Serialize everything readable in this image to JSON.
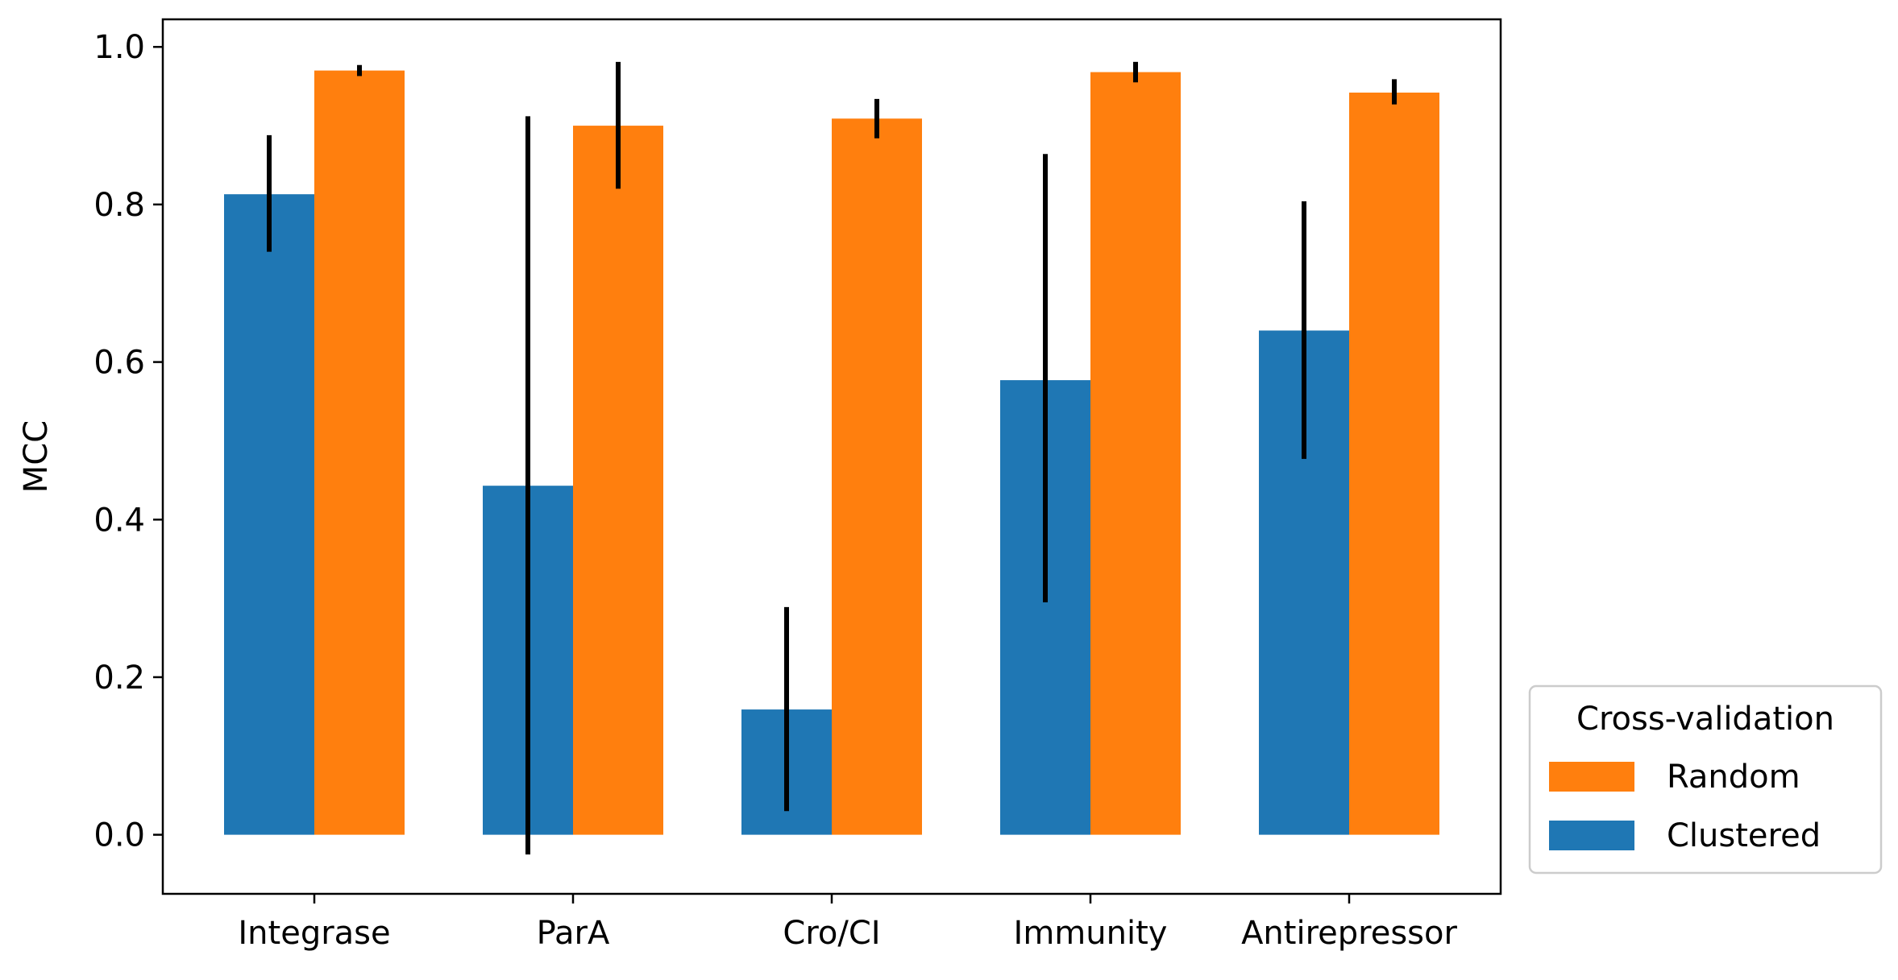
{
  "chart_data": {
    "type": "bar",
    "title": "",
    "xlabel": "",
    "ylabel": "MCC",
    "ylim": [
      -0.075,
      1.035
    ],
    "yticks": [
      "0.0",
      "0.2",
      "0.4",
      "0.6",
      "0.8",
      "1.0"
    ],
    "ytick_values": [
      0.0,
      0.2,
      0.4,
      0.6,
      0.8,
      1.0
    ],
    "grid": false,
    "categories": [
      "Integrase",
      "ParA",
      "Cro/CI",
      "Immunity",
      "Antirepressor"
    ],
    "series": [
      {
        "name": "Clustered",
        "color": "#1f77b4",
        "values": [
          0.813,
          0.443,
          0.159,
          0.577,
          0.64
        ],
        "err_low": [
          0.74,
          -0.025,
          0.03,
          0.295,
          0.477
        ],
        "err_high": [
          0.888,
          0.912,
          0.289,
          0.864,
          0.804
        ]
      },
      {
        "name": "Random",
        "color": "#ff7f0e",
        "values": [
          0.97,
          0.9,
          0.909,
          0.968,
          0.942
        ],
        "err_low": [
          0.963,
          0.82,
          0.884,
          0.955,
          0.927
        ],
        "err_high": [
          0.977,
          0.981,
          0.934,
          0.981,
          0.959
        ]
      }
    ],
    "legend": {
      "title": "Cross-validation",
      "placement": "outside-lower-right",
      "entries": [
        {
          "label": "Random",
          "color": "#ff7f0e"
        },
        {
          "label": "Clustered",
          "color": "#1f77b4"
        }
      ]
    }
  }
}
